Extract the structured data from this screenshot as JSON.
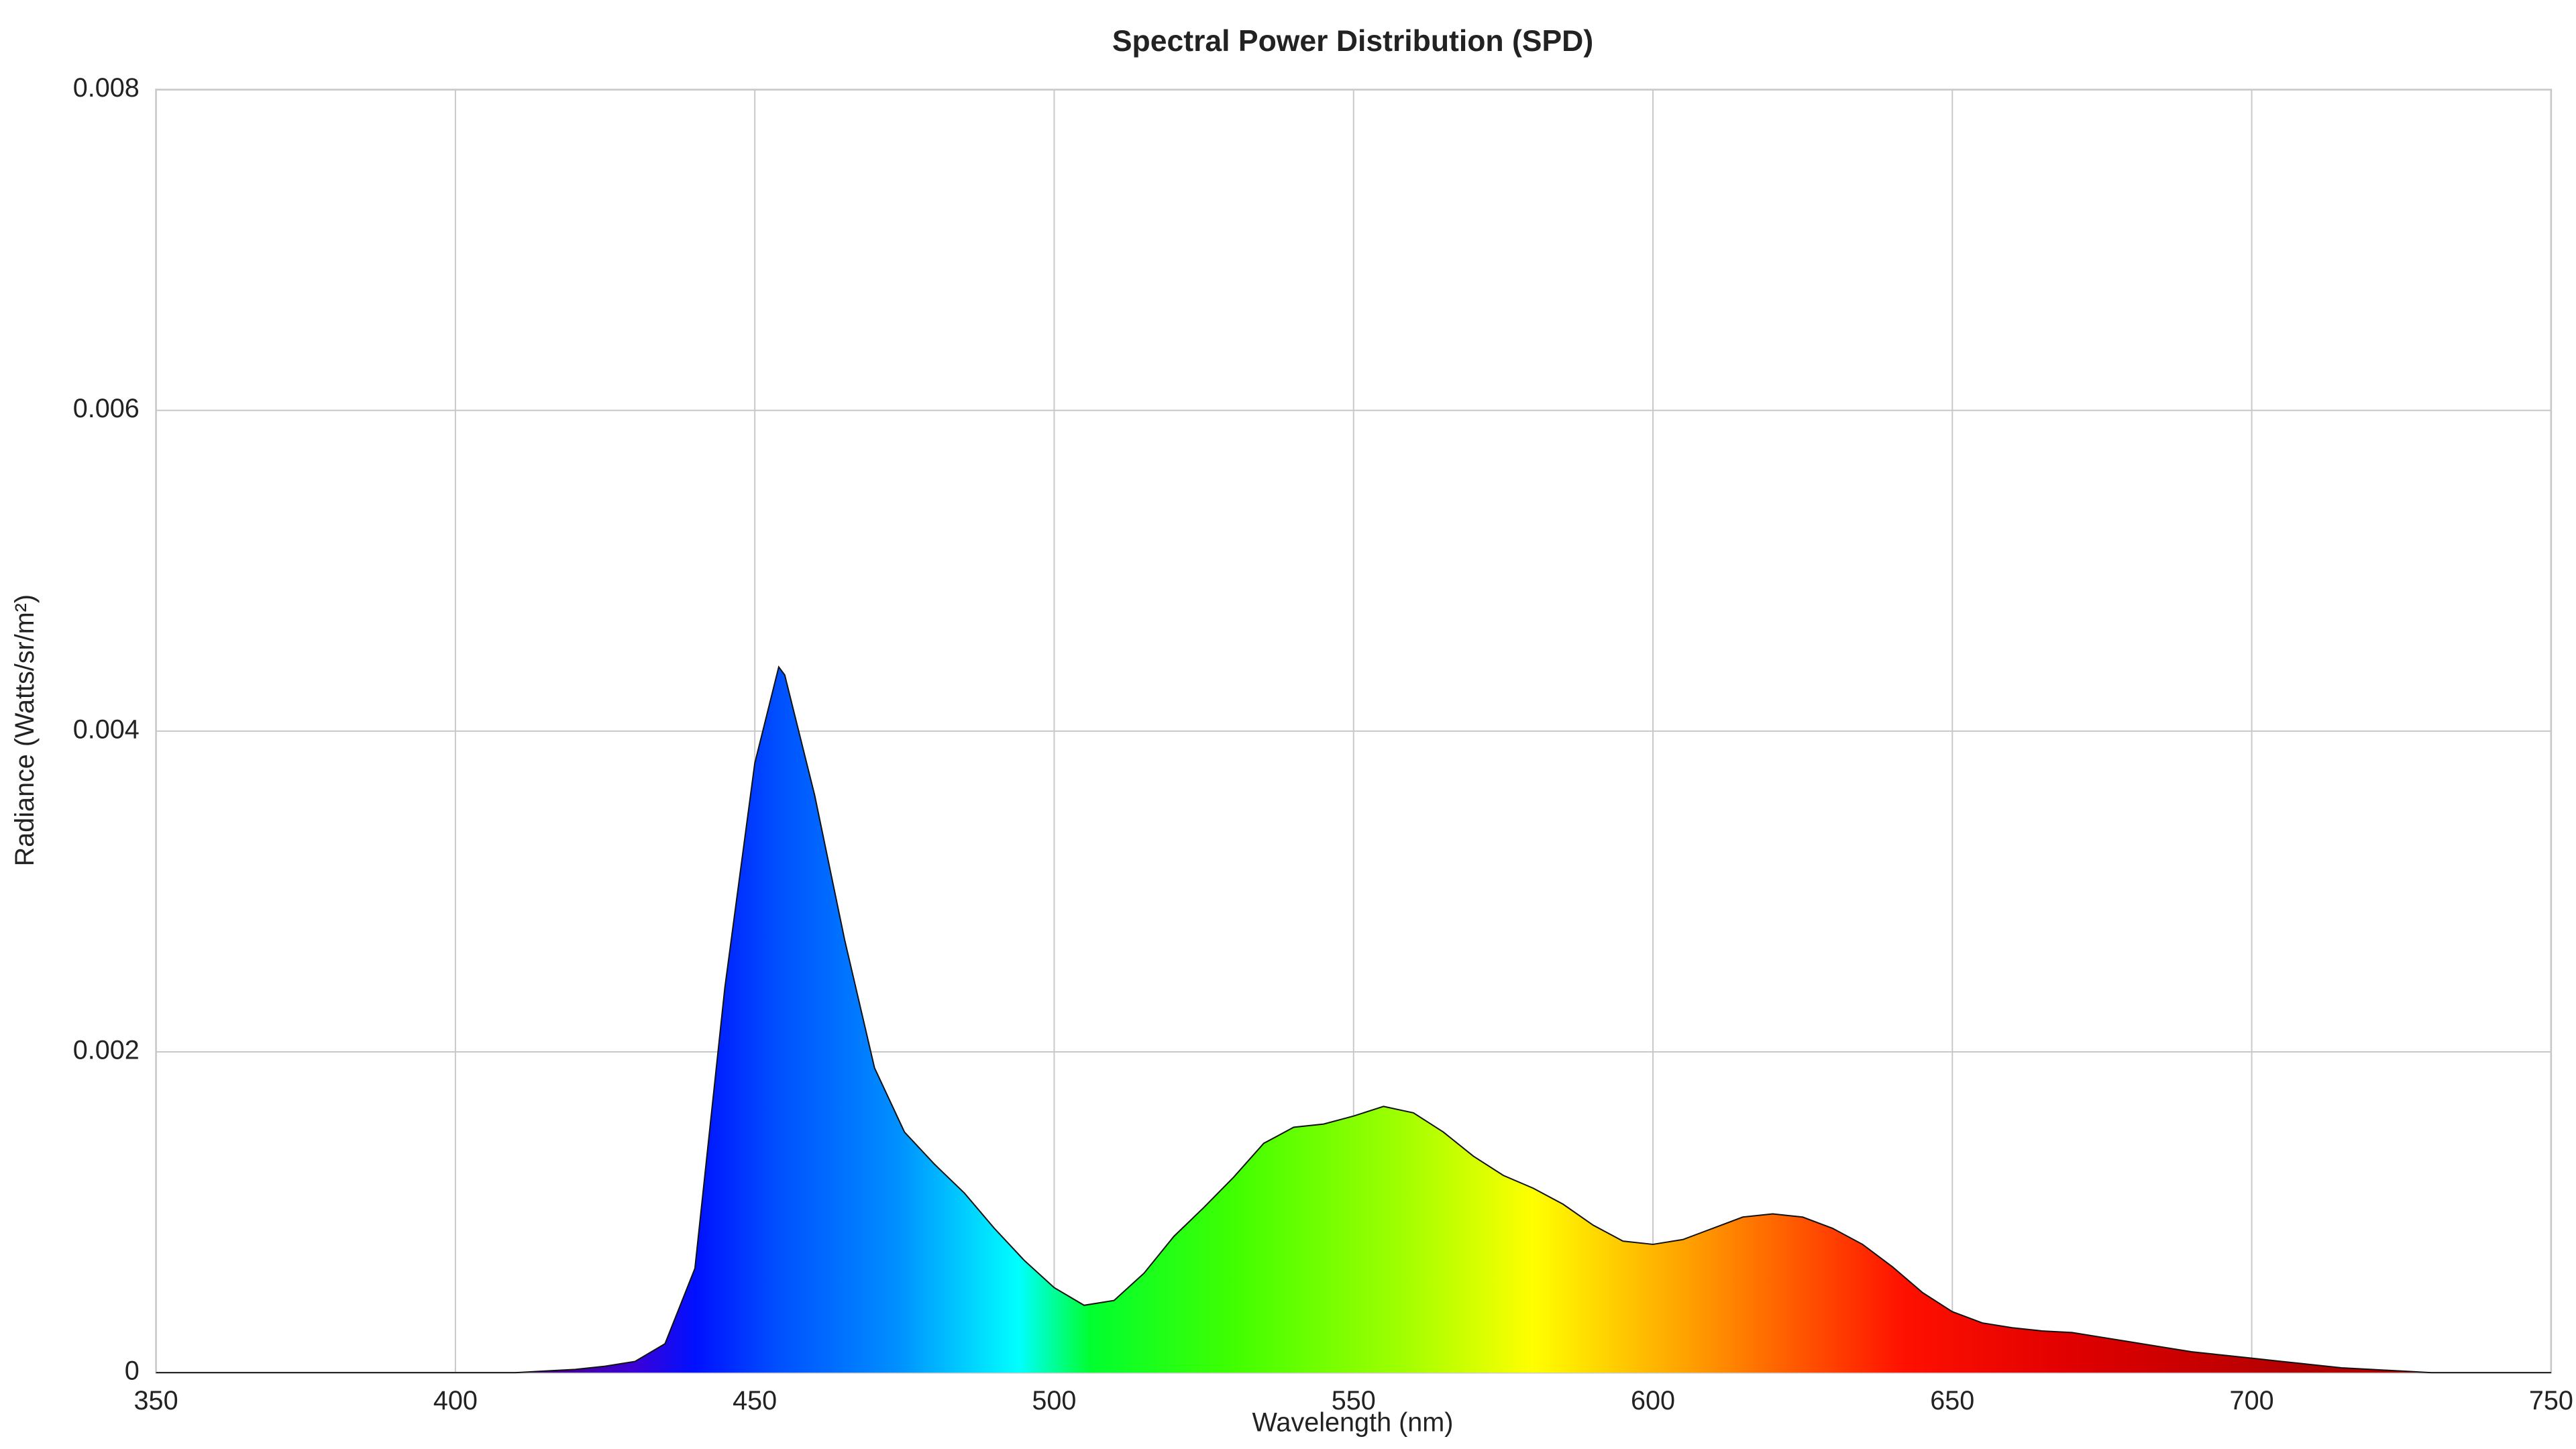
{
  "chart_data": {
    "type": "area",
    "title": "Spectral Power Distribution (SPD)",
    "x_label": "Wavelength (nm)",
    "y_label": "Radiance (Watts/sr/m²)",
    "x": [
      350,
      355,
      360,
      365,
      370,
      375,
      380,
      385,
      390,
      395,
      400,
      405,
      410,
      415,
      420,
      425,
      430,
      435,
      440,
      445,
      450,
      454,
      455,
      460,
      465,
      470,
      475,
      480,
      485,
      490,
      495,
      500,
      505,
      510,
      515,
      520,
      525,
      530,
      535,
      540,
      545,
      550,
      555,
      560,
      565,
      570,
      575,
      580,
      585,
      590,
      595,
      600,
      605,
      610,
      615,
      620,
      625,
      630,
      635,
      640,
      645,
      650,
      655,
      660,
      665,
      670,
      675,
      680,
      685,
      690,
      695,
      700,
      705,
      710,
      715,
      720,
      725,
      730,
      735,
      740,
      745,
      750
    ],
    "values": [
      0,
      0,
      0,
      0,
      0,
      0,
      0,
      0,
      0,
      0,
      0,
      0,
      0,
      1e-05,
      2e-05,
      4e-05,
      7e-05,
      0.00018,
      0.00065,
      0.0024,
      0.0038,
      0.0044,
      0.00435,
      0.0036,
      0.0027,
      0.0019,
      0.0015,
      0.0013,
      0.00112,
      0.0009,
      0.0007,
      0.00053,
      0.00042,
      0.00045,
      0.00062,
      0.00085,
      0.00103,
      0.00122,
      0.00143,
      0.00153,
      0.00155,
      0.0016,
      0.00166,
      0.00162,
      0.0015,
      0.00135,
      0.00123,
      0.00115,
      0.00105,
      0.00092,
      0.00082,
      0.0008,
      0.00083,
      0.0009,
      0.00097,
      0.00099,
      0.00097,
      0.0009,
      0.0008,
      0.00066,
      0.0005,
      0.00038,
      0.00031,
      0.00028,
      0.00026,
      0.00025,
      0.00022,
      0.00019,
      0.00016,
      0.00013,
      0.00011,
      9e-05,
      7e-05,
      5e-05,
      3e-05,
      2e-05,
      1e-05,
      0,
      0,
      0,
      0,
      0
    ],
    "xlim": [
      350,
      750
    ],
    "xticks": [
      350,
      400,
      450,
      500,
      550,
      600,
      650,
      700,
      750
    ],
    "ylim": [
      0,
      0.008
    ],
    "yticks": [
      0,
      0.002,
      0.004,
      0.006,
      0.008
    ],
    "grid": true,
    "line_color": "#111111"
  }
}
